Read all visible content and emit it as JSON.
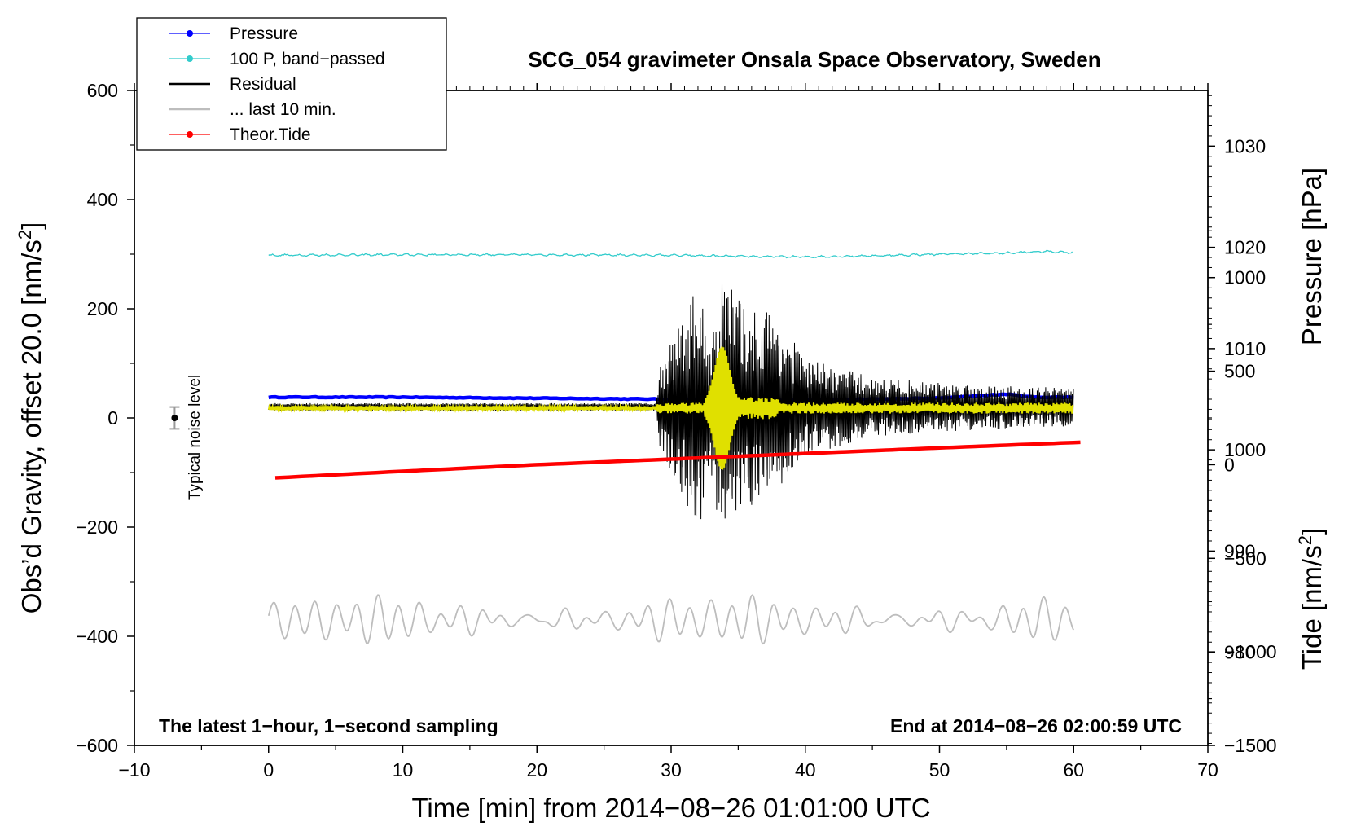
{
  "chart_data": {
    "type": "line",
    "title": "SCG_054 gravimeter Onsala Space Observatory, Sweden",
    "xlabel": "Time [min] from 2014−08−26 01:01:00 UTC",
    "ylabel_left": "Obs’d Gravity, offset 20.0 [nm/s",
    "ylabel_left_sup": "2",
    "ylabel_left_end": "]",
    "ylabel_pressure": "Pressure [hPa]",
    "ylabel_tide": "Tide [nm/s",
    "ylabel_tide_sup": "2",
    "ylabel_tide_end": "]",
    "xlim": [
      -10,
      70
    ],
    "ylim_left": [
      -600,
      600
    ],
    "x_ticks": [
      -10,
      0,
      10,
      20,
      30,
      40,
      50,
      60,
      70
    ],
    "x_tick_labels": [
      "−10",
      "0",
      "10",
      "20",
      "30",
      "40",
      "50",
      "60",
      "70"
    ],
    "y_ticks_left": [
      600,
      400,
      200,
      0,
      -200,
      -400,
      -600
    ],
    "y_tick_labels_left": [
      "600",
      "400",
      "200",
      "0",
      "−200",
      "−400",
      "−600"
    ],
    "pressure_ticks": [
      1030,
      1020,
      1010,
      1000,
      990,
      980
    ],
    "pressure_tick_labels": [
      "1030",
      "1020",
      "1010",
      "1000",
      "990",
      "980"
    ],
    "pressure_range": [
      970.8,
      1035.5
    ],
    "tide_ticks": [
      1000,
      500,
      0,
      -500,
      -1000,
      -1500
    ],
    "tide_tick_labels": [
      "1000",
      "500",
      "0",
      "−500",
      "−1000",
      "−1500"
    ],
    "tide_range": [
      -1500,
      2000
    ],
    "annotation_left": "The latest 1−hour, 1−second sampling",
    "annotation_right": "End at 2014−08−26 02:00:59 UTC",
    "noise_label": "Typical noise level",
    "noise_point": {
      "x": -7,
      "y": 0,
      "err": 20
    },
    "legend": [
      {
        "label": "Pressure",
        "color": "#0000ff",
        "marker": true
      },
      {
        "label": "100 P, band−passed",
        "color": "#33cccc",
        "marker": true
      },
      {
        "label": "Residual",
        "color": "#000000",
        "marker": false
      },
      {
        "label": "... last 10 min.",
        "color": "#bdbdbd",
        "marker": false
      },
      {
        "label": "Theor.Tide",
        "color": "#ff0000",
        "marker": true
      }
    ],
    "series": [
      {
        "name": "Pressure",
        "axis": "pressure",
        "color": "#0000ff",
        "x": [
          0,
          10,
          20,
          30,
          35,
          40,
          45,
          50,
          55,
          57,
          60
        ],
        "y": [
          1005.2,
          1005.2,
          1005.1,
          1005.0,
          1004.9,
          1004.9,
          1005.0,
          1005.1,
          1005.5,
          1005.2,
          1005.2
        ]
      },
      {
        "name": "100 P, band−passed",
        "axis": "left",
        "color": "#33cccc",
        "x": [
          0,
          10,
          20,
          30,
          35,
          40,
          45,
          50,
          55,
          58,
          60
        ],
        "y": [
          298,
          299,
          299,
          298,
          296,
          295,
          297,
          300,
          302,
          305,
          303
        ]
      },
      {
        "name": "Residual",
        "axis": "left",
        "color": "#000000",
        "x": [
          0,
          10,
          20,
          28.9,
          29.2,
          32.1,
          32.8,
          33.6,
          34.4,
          35.5,
          37.5,
          40,
          45,
          50,
          55,
          60
        ],
        "y": [
          20,
          20,
          20,
          20,
          80,
          230,
          110,
          240,
          230,
          180,
          180,
          90,
          55,
          45,
          40,
          35
        ]
      },
      {
        "name": "Theor.Tide",
        "axis": "tide",
        "color": "#ff0000",
        "x": [
          0.5,
          10,
          20,
          30,
          40,
          50,
          60.5
        ],
        "y": [
          -70,
          -35,
          0,
          30,
          60,
          90,
          120
        ]
      },
      {
        "name": "... last 10 min.",
        "axis": "left",
        "color": "#bdbdbd",
        "x": [
          0,
          15,
          30,
          45,
          60
        ],
        "y": [
          -370,
          -370,
          -370,
          -370,
          -370
        ]
      }
    ]
  }
}
